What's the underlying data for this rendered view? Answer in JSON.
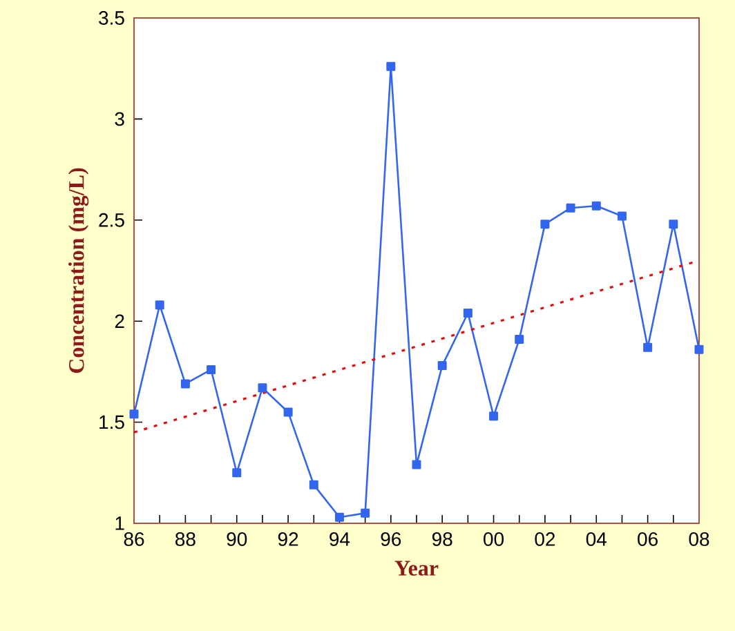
{
  "chart_data": {
    "type": "line",
    "xlabel": "Year",
    "ylabel": "Concentration (mg/L)",
    "x": [
      1986,
      1987,
      1988,
      1989,
      1990,
      1991,
      1992,
      1993,
      1994,
      1995,
      1996,
      1997,
      1998,
      1999,
      2000,
      2001,
      2002,
      2003,
      2004,
      2005,
      2006,
      2007,
      2008
    ],
    "series": [
      {
        "color": "#3366ee",
        "marker": "square",
        "line_style": "solid",
        "values": [
          1.54,
          2.08,
          1.69,
          1.76,
          1.25,
          1.67,
          1.55,
          1.19,
          1.03,
          1.05,
          3.26,
          1.29,
          1.78,
          2.04,
          1.53,
          1.91,
          2.48,
          2.56,
          2.57,
          2.52,
          1.87,
          2.48,
          1.86
        ]
      },
      {
        "type": "line",
        "color": "#dd1111",
        "marker": "none",
        "line_style": "dotted",
        "x": [
          1986,
          2008
        ],
        "values": [
          1.45,
          2.3
        ]
      }
    ],
    "xlim": [
      1986,
      2008
    ],
    "xticks": [
      {
        "value": 1986,
        "label": "86"
      },
      {
        "value": 1987,
        "label": null
      },
      {
        "value": 1988,
        "label": "88"
      },
      {
        "value": 1989,
        "label": null
      },
      {
        "value": 1990,
        "label": "90"
      },
      {
        "value": 1991,
        "label": null
      },
      {
        "value": 1992,
        "label": "92"
      },
      {
        "value": 1993,
        "label": null
      },
      {
        "value": 1994,
        "label": "94"
      },
      {
        "value": 1995,
        "label": null
      },
      {
        "value": 1996,
        "label": "96"
      },
      {
        "value": 1997,
        "label": null
      },
      {
        "value": 1998,
        "label": "98"
      },
      {
        "value": 1999,
        "label": null
      },
      {
        "value": 2000,
        "label": "00"
      },
      {
        "value": 2001,
        "label": null
      },
      {
        "value": 2002,
        "label": "02"
      },
      {
        "value": 2003,
        "label": null
      },
      {
        "value": 2004,
        "label": "04"
      },
      {
        "value": 2005,
        "label": null
      },
      {
        "value": 2006,
        "label": "06"
      },
      {
        "value": 2007,
        "label": null
      },
      {
        "value": 2008,
        "label": "08"
      }
    ],
    "ylim": [
      1,
      3.5
    ],
    "yticks": [
      1,
      1.5,
      2,
      2.5,
      3,
      3.5
    ],
    "grid": false
  }
}
